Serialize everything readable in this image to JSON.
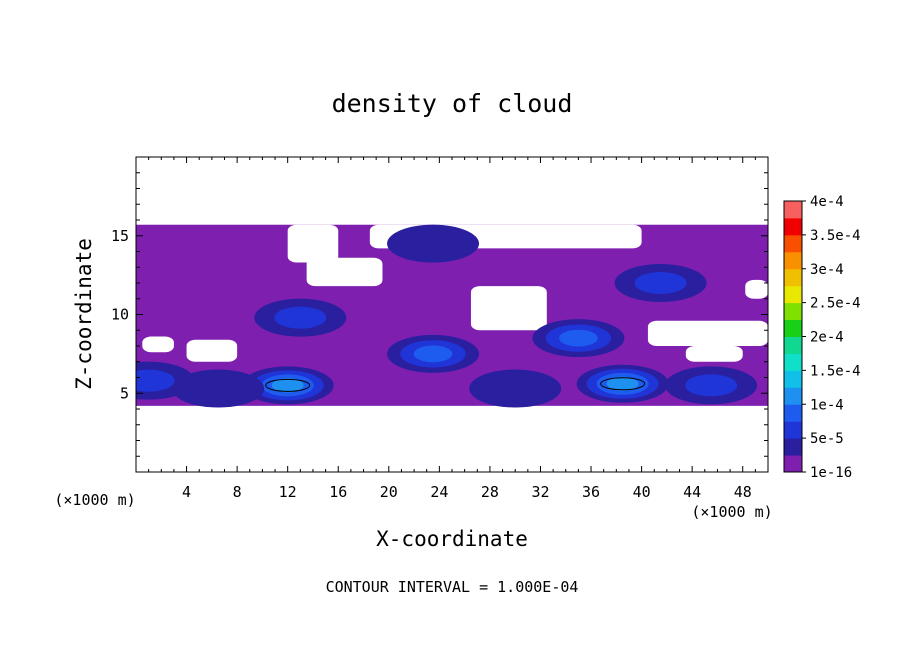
{
  "chart_data": {
    "type": "heatmap",
    "title": "density of cloud",
    "xlabel": "X-coordinate",
    "ylabel": "Z-coordinate",
    "x_unit": "(×1000 m)",
    "z_unit": "(×1000 m)",
    "footer": "CONTOUR INTERVAL = 1.000E-04",
    "xlim": [
      0,
      50
    ],
    "ylim": [
      0,
      20
    ],
    "x_ticks": [
      4,
      8,
      12,
      16,
      20,
      24,
      28,
      32,
      36,
      40,
      44,
      48
    ],
    "y_ticks": [
      5,
      10,
      15
    ],
    "colorbar": {
      "levels": [
        "1e-16",
        "5e-5",
        "1e-4",
        "1.5e-4",
        "2e-4",
        "2.5e-4",
        "3e-4",
        "3.5e-4",
        "4e-4"
      ],
      "colors": [
        "#7f1fb0",
        "#2a1f9f",
        "#1f35d8",
        "#1e5cf0",
        "#1e90f0",
        "#10c0e8",
        "#10e0c8",
        "#10d890",
        "#18d018",
        "#80e000",
        "#e8e800",
        "#f0c000",
        "#f89000",
        "#f85000",
        "#f00000",
        "#f86060"
      ]
    },
    "cloud_layer": {
      "z_bottom": 4.2,
      "z_top": 15.7,
      "x_min": 0,
      "x_max": 50
    },
    "cloud_clearings": [
      {
        "x": [
          12.0,
          16.0
        ],
        "z": [
          13.3,
          15.7
        ]
      },
      {
        "x": [
          13.5,
          19.5
        ],
        "z": [
          11.8,
          13.6
        ]
      },
      {
        "x": [
          18.5,
          40.0
        ],
        "z": [
          14.2,
          15.7
        ]
      },
      {
        "x": [
          26.5,
          32.5
        ],
        "z": [
          9.0,
          11.8
        ]
      },
      {
        "x": [
          0.5,
          3.0
        ],
        "z": [
          7.6,
          8.6
        ]
      },
      {
        "x": [
          4.0,
          8.0
        ],
        "z": [
          7.0,
          8.4
        ]
      },
      {
        "x": [
          40.5,
          50.0
        ],
        "z": [
          8.0,
          9.6
        ]
      },
      {
        "x": [
          43.5,
          48.0
        ],
        "z": [
          7.0,
          8.0
        ]
      },
      {
        "x": [
          48.2,
          50.0
        ],
        "z": [
          11.0,
          12.2
        ]
      }
    ],
    "density_cores": [
      {
        "x": 12.0,
        "z": 5.5,
        "peak": 0.000105
      },
      {
        "x": 38.5,
        "z": 5.6,
        "peak": 0.000105
      },
      {
        "x": 23.5,
        "z": 7.5,
        "peak": 8e-05
      },
      {
        "x": 35.0,
        "z": 8.5,
        "peak": 7e-05
      },
      {
        "x": 13.0,
        "z": 9.8,
        "peak": 6e-05
      },
      {
        "x": 45.5,
        "z": 5.5,
        "peak": 6e-05
      },
      {
        "x": 41.5,
        "z": 12.0,
        "peak": 4e-05
      },
      {
        "x": 23.5,
        "z": 14.5,
        "peak": 3e-05
      },
      {
        "x": 1.0,
        "z": 5.8,
        "peak": 4e-05
      },
      {
        "x": 6.5,
        "z": 5.3,
        "peak": 3e-05
      },
      {
        "x": 30.0,
        "z": 5.3,
        "peak": 3e-05
      }
    ]
  }
}
